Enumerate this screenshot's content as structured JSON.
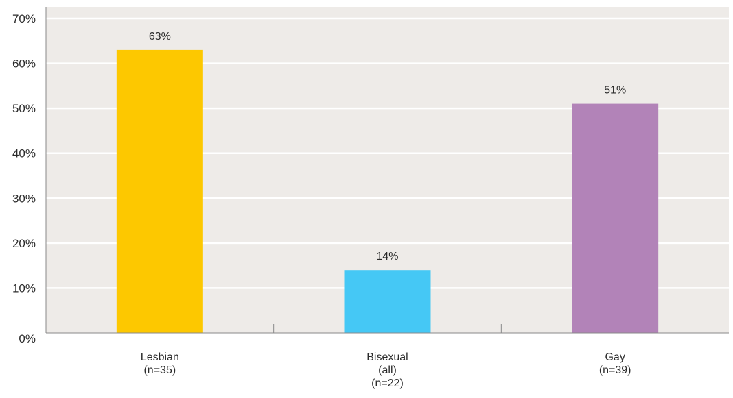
{
  "chart_data": {
    "type": "bar",
    "categories": [
      [
        "Lesbian",
        "(n=35)"
      ],
      [
        "Bisexual",
        "(all)",
        "(n=22)"
      ],
      [
        "Gay",
        "(n=39)"
      ]
    ],
    "values": [
      63,
      14,
      51
    ],
    "data_labels": [
      "63%",
      "14%",
      "51%"
    ],
    "bar_colors": [
      "#FDC800",
      "#45C8F5",
      "#B283B8"
    ],
    "y_ticks": [
      "0%",
      "10%",
      "20%",
      "30%",
      "40%",
      "50%",
      "60%",
      "70%"
    ],
    "ylim": [
      0,
      70
    ],
    "grid": true,
    "legend": "none",
    "plot_background": "#EEEBE8",
    "gridline_color": "#FFFFFF"
  }
}
